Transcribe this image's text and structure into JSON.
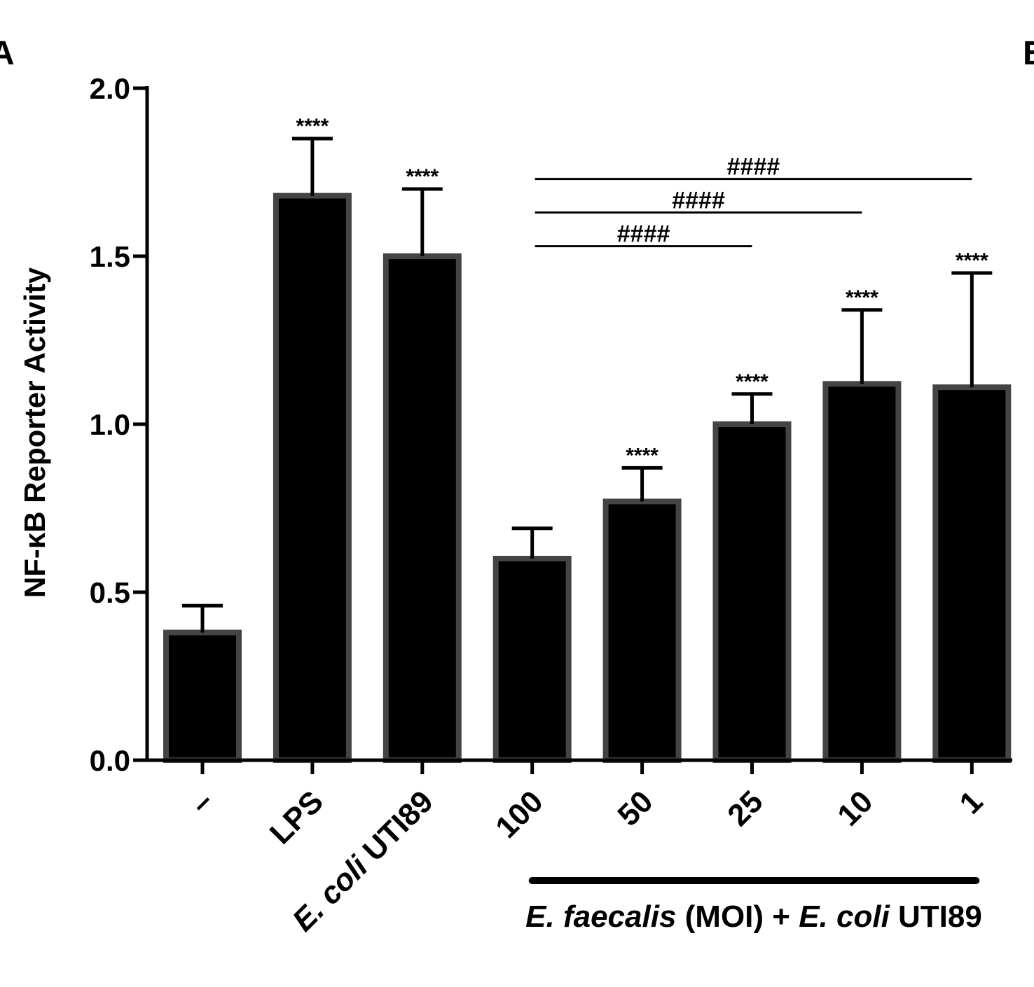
{
  "panel_labels": {
    "left": "A",
    "right": "B"
  },
  "chart_data": {
    "type": "bar",
    "ylabel": "NF-κB Reporter Activity",
    "xlabel": "",
    "ylim": [
      0,
      2.0
    ],
    "yticks": [
      0.0,
      0.5,
      1.0,
      1.5,
      2.0
    ],
    "ytick_labels": [
      "0.0",
      "0.5",
      "1.0",
      "1.5",
      "2.0"
    ],
    "categories": [
      {
        "label": "–"
      },
      {
        "label": "LPS"
      },
      {
        "label_parts": [
          {
            "text": "E. coli",
            "italic": true
          },
          {
            "text": " UTI89",
            "italic": false
          }
        ]
      },
      {
        "label": "100"
      },
      {
        "label": "50"
      },
      {
        "label": "25"
      },
      {
        "label": "10"
      },
      {
        "label": "1"
      }
    ],
    "values": [
      0.38,
      1.68,
      1.5,
      0.6,
      0.77,
      1.0,
      1.12,
      1.11
    ],
    "errors": [
      0.08,
      0.17,
      0.2,
      0.09,
      0.1,
      0.09,
      0.22,
      0.34
    ],
    "significance": [
      "",
      "****",
      "****",
      "",
      "****",
      "****",
      "****",
      "****"
    ],
    "comparisons": [
      {
        "from": 3,
        "to": 5,
        "label": "####",
        "y": 1.53
      },
      {
        "from": 3,
        "to": 6,
        "label": "####",
        "y": 1.63
      },
      {
        "from": 3,
        "to": 7,
        "label": "####",
        "y": 1.73
      }
    ],
    "group": {
      "from": 3,
      "to": 7,
      "label_parts": [
        {
          "text": "E. faecalis",
          "italic": true
        },
        {
          "text": " (MOI) + ",
          "italic": false
        },
        {
          "text": "E. coli",
          "italic": true
        },
        {
          "text": " UTI89",
          "italic": false
        }
      ]
    },
    "colors": {
      "bar_fill": "#000000",
      "bar_edge": "#444444",
      "axis": "#000000"
    }
  }
}
